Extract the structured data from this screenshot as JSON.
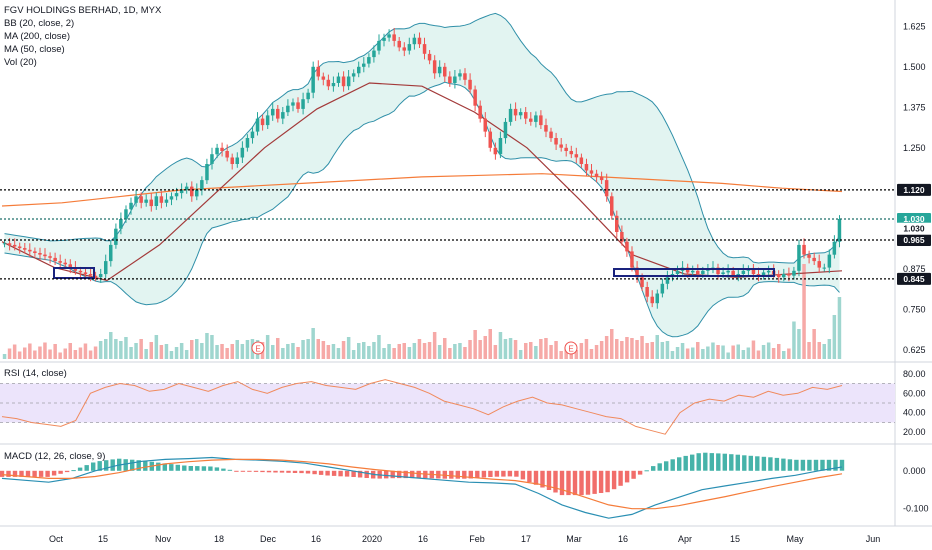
{
  "legend": {
    "symbol": "FGV HOLDINGS BERHAD, 1D, MYX",
    "bb": "BB (20, close, 2)",
    "ma200": "MA (200, close)",
    "ma50": "MA (50, close)",
    "vol": "Vol (20)",
    "rsi": "RSI (14, close)",
    "macd": "MACD (12, 26, close, 9)"
  },
  "colors": {
    "up": "#26a69a",
    "down": "#ef5350",
    "bb": "#2f8fa8",
    "bb_fill": "#dff3ef",
    "ma50": "#a33a3a",
    "ma200": "#f57c3a",
    "rsi": "#f08a5d",
    "rsi_band": "#ece4fb",
    "macd": "#2a8fb3",
    "signal": "#f57c3a",
    "box": "#1a237e"
  },
  "chart_data": [
    {
      "type": "candlestick",
      "title": "FGV HOLDINGS BERHAD, 1D, MYX",
      "y_ticks": [
        "1.625",
        "1.500",
        "1.375",
        "1.250",
        "0.875",
        "0.750",
        "0.625"
      ],
      "ylim": [
        0.61,
        1.66
      ],
      "x_ticks": [
        "Oct",
        "15",
        "Nov",
        "18",
        "Dec",
        "16",
        "2020",
        "16",
        "Feb",
        "17",
        "Mar",
        "16",
        "Apr",
        "15",
        "May",
        "Jun"
      ],
      "horizontal_levels": [
        {
          "value": 1.12,
          "label": "1.120",
          "style": "dotted",
          "badge": "dark"
        },
        {
          "value": 1.03,
          "label": "1.030",
          "style": "dotted",
          "badge": "teal"
        },
        {
          "value": 0.965,
          "label": "0.965",
          "style": "dotted",
          "badge": "dark"
        },
        {
          "value": 0.845,
          "label": "0.845",
          "style": "dotted",
          "badge": "dark"
        }
      ],
      "price_labels": [
        {
          "label": "1.030",
          "badge": "teal"
        },
        {
          "label": "1.030",
          "badge": "white"
        }
      ],
      "annotations": [
        "E",
        "E"
      ],
      "series": [
        {
          "name": "Close",
          "values": [
            0.955,
            0.95,
            0.945,
            0.94,
            0.935,
            0.93,
            0.925,
            0.92,
            0.915,
            0.91,
            0.9,
            0.895,
            0.89,
            0.88,
            0.87,
            0.865,
            0.86,
            0.855,
            0.85,
            0.86,
            0.9,
            0.95,
            1.0,
            1.03,
            1.06,
            1.08,
            1.1,
            1.08,
            1.09,
            1.07,
            1.1,
            1.08,
            1.09,
            1.1,
            1.11,
            1.12,
            1.13,
            1.1,
            1.12,
            1.15,
            1.2,
            1.23,
            1.25,
            1.24,
            1.22,
            1.2,
            1.22,
            1.25,
            1.28,
            1.3,
            1.34,
            1.32,
            1.35,
            1.37,
            1.34,
            1.36,
            1.38,
            1.39,
            1.37,
            1.4,
            1.42,
            1.5,
            1.47,
            1.46,
            1.44,
            1.45,
            1.47,
            1.44,
            1.47,
            1.48,
            1.5,
            1.51,
            1.53,
            1.55,
            1.58,
            1.59,
            1.6,
            1.58,
            1.56,
            1.55,
            1.57,
            1.59,
            1.57,
            1.54,
            1.52,
            1.48,
            1.5,
            1.47,
            1.45,
            1.47,
            1.48,
            1.46,
            1.43,
            1.38,
            1.34,
            1.3,
            1.25,
            1.23,
            1.28,
            1.33,
            1.37,
            1.35,
            1.36,
            1.34,
            1.33,
            1.35,
            1.32,
            1.3,
            1.28,
            1.26,
            1.25,
            1.24,
            1.23,
            1.22,
            1.2,
            1.18,
            1.17,
            1.16,
            1.15,
            1.1,
            1.04,
            0.99,
            0.96,
            0.93,
            0.88,
            0.85,
            0.82,
            0.79,
            0.77,
            0.8,
            0.83,
            0.85,
            0.86,
            0.87,
            0.88,
            0.865,
            0.87,
            0.86,
            0.87,
            0.875,
            0.88,
            0.86,
            0.865,
            0.87,
            0.855,
            0.86,
            0.87,
            0.875,
            0.86,
            0.855,
            0.865,
            0.87,
            0.86,
            0.85,
            0.86,
            0.855,
            0.87,
            0.95,
            0.92,
            0.91,
            0.9,
            0.88,
            0.88,
            0.92,
            0.96,
            1.03
          ]
        },
        {
          "name": "MA (50, close)",
          "values": [
            0.96,
            0.88,
            0.84,
            0.95,
            1.1,
            1.25,
            1.37,
            1.45,
            1.44,
            1.36,
            1.25,
            1.09,
            0.92,
            0.86,
            0.85,
            0.86,
            0.87
          ]
        },
        {
          "name": "MA (200, close)",
          "values": [
            1.07,
            1.08,
            1.1,
            1.12,
            1.13,
            1.14,
            1.15,
            1.16,
            1.165,
            1.17,
            1.16,
            1.15,
            1.14,
            1.125,
            1.115
          ]
        }
      ]
    },
    {
      "type": "line",
      "title": "RSI (14, close)",
      "y_ticks": [
        "80.00",
        "60.00",
        "40.00",
        "20.00"
      ],
      "ylim": [
        12,
        88
      ],
      "band": [
        30,
        70
      ],
      "series": [
        {
          "name": "RSI",
          "values": [
            36,
            34,
            30,
            28,
            26,
            32,
            60,
            66,
            70,
            68,
            62,
            64,
            70,
            66,
            62,
            68,
            72,
            64,
            60,
            66,
            70,
            72,
            68,
            66,
            64,
            70,
            74,
            70,
            66,
            60,
            52,
            48,
            44,
            38,
            46,
            52,
            56,
            50,
            48,
            44,
            40,
            36,
            34,
            26,
            22,
            18,
            40,
            50,
            54,
            52,
            58,
            56,
            62,
            58,
            60,
            66,
            64,
            68
          ]
        }
      ]
    },
    {
      "type": "line",
      "title": "MACD (12, 26, close, 9)",
      "y_ticks": [
        "0.000",
        "-0.100"
      ],
      "ylim": [
        -0.135,
        0.06
      ],
      "series": [
        {
          "name": "MACD",
          "values": [
            -0.02,
            -0.025,
            -0.03,
            -0.02,
            0.0,
            0.015,
            0.025,
            0.03,
            0.032,
            0.035,
            0.03,
            0.028,
            0.025,
            0.02,
            0.01,
            0.0,
            -0.01,
            -0.015,
            -0.02,
            -0.025,
            -0.03,
            -0.032,
            -0.035,
            -0.06,
            -0.09,
            -0.11,
            -0.125,
            -0.115,
            -0.09,
            -0.07,
            -0.05,
            -0.04,
            -0.03,
            -0.02,
            -0.012,
            0.0,
            0.01
          ]
        },
        {
          "name": "Signal",
          "values": [
            -0.01,
            -0.015,
            -0.02,
            -0.02,
            -0.015,
            -0.005,
            0.008,
            0.018,
            0.024,
            0.028,
            0.03,
            0.03,
            0.028,
            0.024,
            0.018,
            0.01,
            0.003,
            -0.003,
            -0.008,
            -0.012,
            -0.017,
            -0.022,
            -0.026,
            -0.035,
            -0.05,
            -0.07,
            -0.09,
            -0.1,
            -0.1,
            -0.092,
            -0.08,
            -0.068,
            -0.055,
            -0.042,
            -0.03,
            -0.018,
            -0.008
          ]
        }
      ]
    }
  ]
}
